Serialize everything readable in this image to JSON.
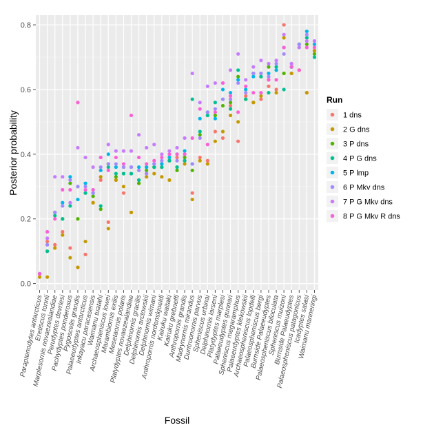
{
  "chart_data": {
    "type": "scatter",
    "xlabel": "Fossil",
    "ylabel": "Posterior probability",
    "ylim": [
      -0.02,
      0.83
    ],
    "yticks": [
      0.0,
      0.2,
      0.4,
      0.6,
      0.8
    ],
    "ytick_labels": [
      "0.0",
      "0.2",
      "0.4",
      "0.6",
      "0.8"
    ],
    "grid": true,
    "legend": {
      "title": "Run",
      "position": "right"
    },
    "categories": [
      "Paraptenodytes antarcticus",
      "Eretiscus tonnii",
      "Marplesornis novaezealandiae",
      "Perudyptes devriesi",
      "Pachydyptes ponderosus",
      "Pygoscelis grandis",
      "Palaeeudyptes antarcticus",
      "Inkayacu paracasensis",
      "Waimanu tuatahi",
      "Archaeospheniscus lowei",
      "Marambiornis exilis",
      "Mesetaornis polaris",
      "Platydyptes novaezealandiae",
      "Delphinornis gracilis",
      "Delphinornis arctowskii",
      "Delphinornis wimani",
      "Anthropornis nordenskjoeldi",
      "Kairuku waitaki",
      "Kairuku grebneffi",
      "Anthropornis grandis",
      "Madrynornis mirandus",
      "Duntroonornis parvus",
      "Spheniscus urbinai",
      "Delphinornis larseni",
      "Platydyptes marplesi",
      "Palaeeudyptes gunnari",
      "Spheniscus megaramphus",
      "Palaeeudyptes klekowskii",
      "Archaeospheniscus lopdelli",
      "Palaeospheniscus bergi",
      "Burnside Palaeeudyptes",
      "Palaeospheniscus biloculata",
      "Spheniscus muizoni",
      "Burnside Palaeudyptes",
      "Palaeospheniscus patagonicus",
      "Icadyptes salasi",
      "Waimanu manneringi"
    ],
    "series": [
      {
        "name": "1 dns",
        "color": "#F8766D",
        "values": [
          0.03,
          0.13,
          0.12,
          0.16,
          0.11,
          0.05,
          0.09,
          0.25,
          0.32,
          0.19,
          0.32,
          0.28,
          0.22,
          0.31,
          0.34,
          0.36,
          0.37,
          0.38,
          0.39,
          0.38,
          0.28,
          0.39,
          0.38,
          0.47,
          0.45,
          0.55,
          0.44,
          0.58,
          0.56,
          0.57,
          0.61,
          0.6,
          0.8,
          0.65,
          0.66,
          0.59,
          0.72
        ]
      },
      {
        "name": "2 G dns",
        "color": "#C49A00",
        "values": [
          0.02,
          0.02,
          0.11,
          0.15,
          0.08,
          0.05,
          0.13,
          0.25,
          0.33,
          0.17,
          0.32,
          0.3,
          0.22,
          0.32,
          0.33,
          0.34,
          0.33,
          0.32,
          0.36,
          0.37,
          0.26,
          0.38,
          0.37,
          0.44,
          0.47,
          0.52,
          0.5,
          0.57,
          0.56,
          0.58,
          0.63,
          0.59,
          0.76,
          0.65,
          0.66,
          0.59,
          0.72
        ]
      },
      {
        "name": "3 P dns",
        "color": "#53B400",
        "values": [
          0.03,
          0.1,
          0.22,
          0.2,
          0.31,
          0.2,
          0.28,
          0.27,
          0.23,
          0.37,
          0.33,
          0.34,
          0.34,
          0.31,
          0.35,
          0.36,
          0.36,
          0.38,
          0.35,
          0.39,
          0.35,
          0.46,
          0.52,
          0.52,
          0.55,
          0.56,
          0.64,
          0.57,
          0.65,
          0.64,
          0.67,
          0.66,
          0.65,
          0.67,
          0.73,
          0.74,
          0.71
        ]
      },
      {
        "name": "4 P G dns",
        "color": "#00C094",
        "values": [
          0.03,
          0.1,
          0.21,
          0.2,
          0.24,
          0.3,
          0.28,
          0.28,
          0.24,
          0.36,
          0.34,
          0.34,
          0.34,
          0.32,
          0.36,
          0.36,
          0.36,
          0.38,
          0.36,
          0.38,
          0.57,
          0.47,
          0.52,
          0.56,
          0.57,
          0.54,
          0.66,
          0.57,
          0.65,
          0.64,
          0.59,
          0.67,
          0.6,
          0.67,
          0.74,
          0.76,
          0.7
        ]
      },
      {
        "name": "5 P lmp",
        "color": "#00B6EB",
        "values": [
          0.03,
          0.12,
          0.22,
          0.25,
          0.33,
          0.26,
          0.31,
          0.28,
          0.35,
          0.4,
          0.36,
          0.36,
          0.36,
          0.36,
          0.36,
          0.37,
          0.37,
          0.39,
          0.4,
          0.41,
          0.37,
          0.51,
          0.53,
          0.51,
          0.6,
          0.59,
          0.63,
          0.6,
          0.64,
          0.65,
          0.65,
          0.66,
          0.73,
          0.67,
          0.74,
          0.78,
          0.74
        ]
      },
      {
        "name": "6 P Mkv dns",
        "color": "#A58AFF",
        "values": [
          0.03,
          0.12,
          0.22,
          0.24,
          0.32,
          0.3,
          0.3,
          0.28,
          0.36,
          0.37,
          0.37,
          0.36,
          0.36,
          0.35,
          0.34,
          0.37,
          0.38,
          0.4,
          0.38,
          0.4,
          0.37,
          0.45,
          0.53,
          0.54,
          0.57,
          0.57,
          0.62,
          0.59,
          0.65,
          0.65,
          0.64,
          0.68,
          0.71,
          0.68,
          0.74,
          0.77,
          0.75
        ]
      },
      {
        "name": "7 P G Mkv dns",
        "color": "#C77CFF",
        "values": [
          0.03,
          0.14,
          0.33,
          0.33,
          0.25,
          0.42,
          0.39,
          0.36,
          0.39,
          0.43,
          0.41,
          0.41,
          0.41,
          0.46,
          0.42,
          0.43,
          0.4,
          0.41,
          0.42,
          0.45,
          0.65,
          0.56,
          0.61,
          0.62,
          0.62,
          0.66,
          0.71,
          0.63,
          0.67,
          0.69,
          0.68,
          0.69,
          0.77,
          0.68,
          0.73,
          0.75,
          0.75
        ]
      },
      {
        "name": "8 P G Mkv R dns",
        "color": "#FB61D7",
        "values": [
          0.03,
          0.16,
          0.2,
          0.29,
          0.29,
          0.56,
          0.29,
          0.29,
          0.39,
          0.35,
          0.39,
          0.37,
          0.52,
          0.39,
          0.37,
          0.38,
          0.39,
          0.4,
          0.4,
          0.4,
          0.45,
          0.54,
          0.43,
          0.53,
          0.62,
          0.58,
          0.53,
          0.61,
          0.59,
          0.59,
          0.63,
          0.63,
          0.73,
          0.67,
          0.66,
          0.73,
          0.73
        ]
      }
    ]
  }
}
